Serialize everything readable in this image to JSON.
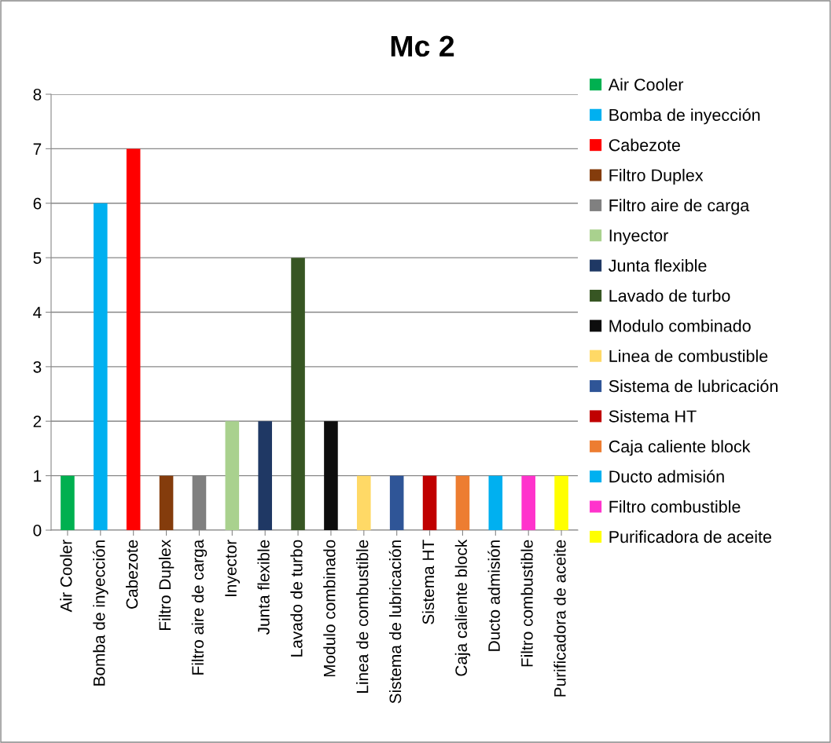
{
  "chart_data": {
    "type": "bar",
    "title": "Mc 2",
    "categories": [
      "Air Cooler",
      "Bomba de inyección",
      "Cabezote",
      "Filtro Duplex",
      "Filtro aire de carga",
      "Inyector",
      "Junta flexible",
      "Lavado de turbo",
      "Modulo combinado",
      "Linea de combustible",
      "Sistema de lubricación",
      "Sistema HT",
      "Caja caliente block",
      "Ducto admisión",
      "Filtro combustible",
      "Purificadora de aceite"
    ],
    "series": [
      {
        "name": "Air Cooler",
        "color": "#00b050",
        "values": [
          1,
          null,
          null,
          null,
          null,
          null,
          null,
          null,
          null,
          null,
          null,
          null,
          null,
          null,
          null,
          null
        ]
      },
      {
        "name": "Bomba de inyección",
        "color": "#00b0f0",
        "values": [
          null,
          6,
          null,
          null,
          null,
          null,
          null,
          null,
          null,
          null,
          null,
          null,
          null,
          null,
          null,
          null
        ]
      },
      {
        "name": "Cabezote",
        "color": "#ff0000",
        "values": [
          null,
          null,
          7,
          null,
          null,
          null,
          null,
          null,
          null,
          null,
          null,
          null,
          null,
          null,
          null,
          null
        ]
      },
      {
        "name": "Filtro Duplex",
        "color": "#843c0c",
        "values": [
          null,
          null,
          null,
          1,
          null,
          null,
          null,
          null,
          null,
          null,
          null,
          null,
          null,
          null,
          null,
          null
        ]
      },
      {
        "name": "Filtro aire de carga",
        "color": "#808080",
        "values": [
          null,
          null,
          null,
          null,
          1,
          null,
          null,
          null,
          null,
          null,
          null,
          null,
          null,
          null,
          null,
          null
        ]
      },
      {
        "name": "Inyector",
        "color": "#a9d18e",
        "values": [
          null,
          null,
          null,
          null,
          null,
          2,
          null,
          null,
          null,
          null,
          null,
          null,
          null,
          null,
          null,
          null
        ]
      },
      {
        "name": "Junta flexible",
        "color": "#1f3864",
        "values": [
          null,
          null,
          null,
          null,
          null,
          null,
          2,
          null,
          null,
          null,
          null,
          null,
          null,
          null,
          null,
          null
        ]
      },
      {
        "name": "Lavado de turbo",
        "color": "#375623",
        "values": [
          null,
          null,
          null,
          null,
          null,
          null,
          null,
          5,
          null,
          null,
          null,
          null,
          null,
          null,
          null,
          null
        ]
      },
      {
        "name": "Modulo combinado",
        "color": "#0d0d0d",
        "values": [
          null,
          null,
          null,
          null,
          null,
          null,
          null,
          null,
          2,
          null,
          null,
          null,
          null,
          null,
          null,
          null
        ]
      },
      {
        "name": "Linea de combustible",
        "color": "#ffd966",
        "values": [
          null,
          null,
          null,
          null,
          null,
          null,
          null,
          null,
          null,
          1,
          null,
          null,
          null,
          null,
          null,
          null
        ]
      },
      {
        "name": "Sistema de lubricación",
        "color": "#2f5597",
        "values": [
          null,
          null,
          null,
          null,
          null,
          null,
          null,
          null,
          null,
          null,
          1,
          null,
          null,
          null,
          null,
          null
        ]
      },
      {
        "name": "Sistema HT",
        "color": "#c00000",
        "values": [
          null,
          null,
          null,
          null,
          null,
          null,
          null,
          null,
          null,
          null,
          null,
          1,
          null,
          null,
          null,
          null
        ]
      },
      {
        "name": "Caja caliente block",
        "color": "#ed7d31",
        "values": [
          null,
          null,
          null,
          null,
          null,
          null,
          null,
          null,
          null,
          null,
          null,
          null,
          1,
          null,
          null,
          null
        ]
      },
      {
        "name": "Ducto admisión",
        "color": "#00b0f0",
        "values": [
          null,
          null,
          null,
          null,
          null,
          null,
          null,
          null,
          null,
          null,
          null,
          null,
          null,
          1,
          null,
          null
        ]
      },
      {
        "name": "Filtro combustible",
        "color": "#ff33cc",
        "values": [
          null,
          null,
          null,
          null,
          null,
          null,
          null,
          null,
          null,
          null,
          null,
          null,
          null,
          null,
          1,
          null
        ]
      },
      {
        "name": "Purificadora de aceite",
        "color": "#ffff00",
        "values": [
          null,
          null,
          null,
          null,
          null,
          null,
          null,
          null,
          null,
          null,
          null,
          null,
          null,
          null,
          null,
          1
        ]
      }
    ],
    "ylim": [
      0,
      8
    ],
    "yticks": [
      0,
      1,
      2,
      3,
      4,
      5,
      6,
      7,
      8
    ],
    "grid": "y",
    "legend": "right"
  }
}
